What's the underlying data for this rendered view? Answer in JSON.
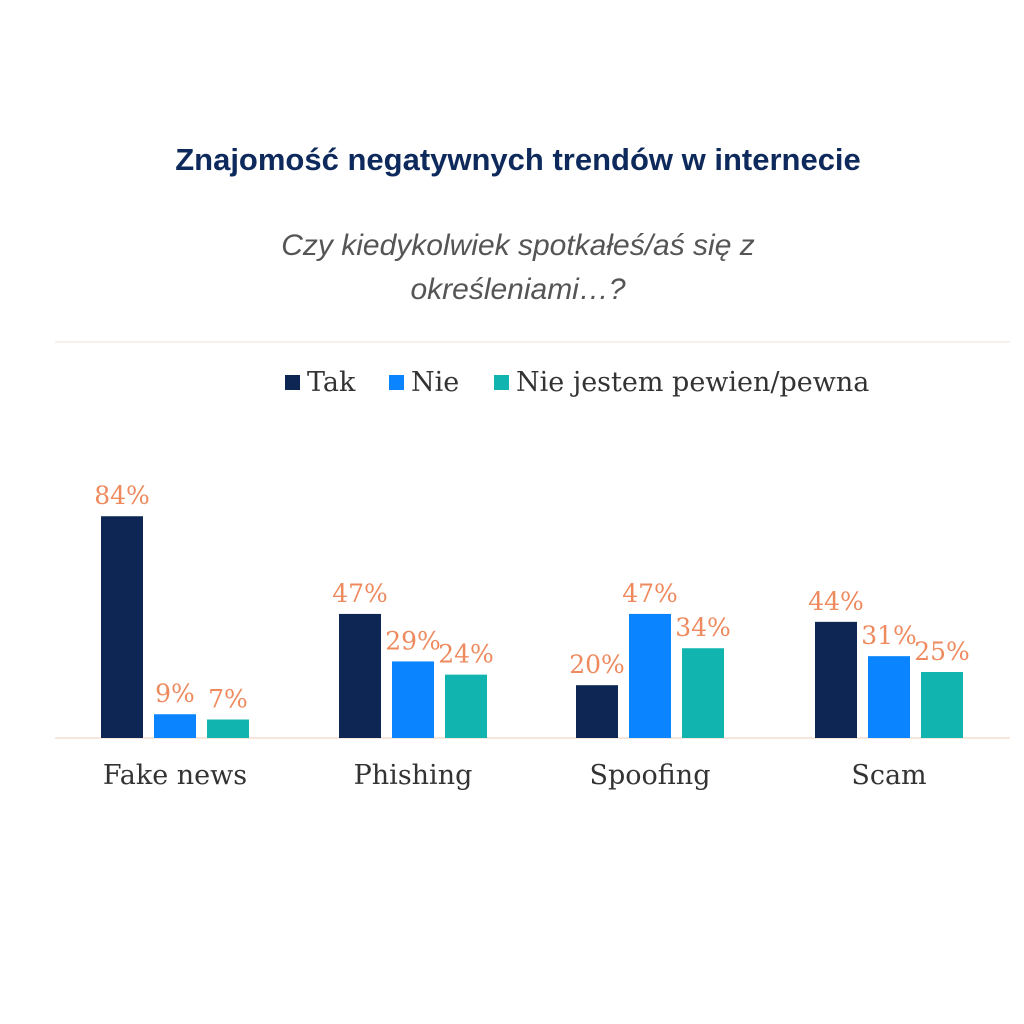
{
  "title": "Znajomość negatywnych trendów w internecie",
  "subtitle_lines": [
    "Czy kiedykolwiek spotkałeś/aś się z",
    "określeniami…?"
  ],
  "chart_data": {
    "type": "bar",
    "categories": [
      "Fake news",
      "Phishing",
      "Spoofing",
      "Scam"
    ],
    "series": [
      {
        "name": "Tak",
        "color": "#0d2654",
        "values": [
          84,
          47,
          20,
          44
        ]
      },
      {
        "name": "Nie",
        "color": "#0a84ff",
        "values": [
          9,
          29,
          47,
          31
        ]
      },
      {
        "name": "Nie jestem pewien/pewna",
        "color": "#12b4b0",
        "values": [
          7,
          24,
          34,
          25
        ]
      }
    ],
    "value_suffix": "%",
    "label_color": "#ee8a5e",
    "legend_position": "top",
    "ylim": [
      0,
      100
    ],
    "grid": false
  }
}
